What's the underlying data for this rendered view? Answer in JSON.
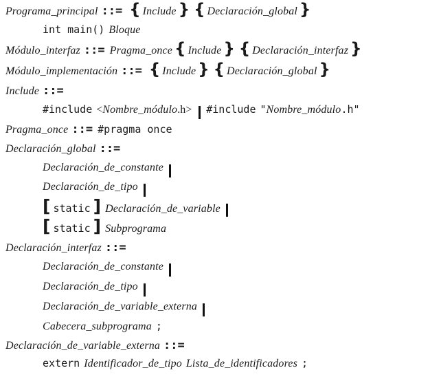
{
  "grammar": {
    "assign_op": "::=",
    "brace_open": "{",
    "brace_close": "}",
    "bracket_open": "[",
    "bracket_close": "]",
    "semicolon": ";",
    "programa_principal": {
      "name": "Programa_principal",
      "include": "Include",
      "decl_global": "Declaración_global",
      "main_sig": "int main()",
      "bloque": "Bloque"
    },
    "modulo_interfaz": {
      "name": "Módulo_interfaz",
      "pragma": "Pragma_once",
      "include": "Include",
      "decl_interfaz": "Declaración_interfaz"
    },
    "modulo_implementacion": {
      "name": "Módulo_implementación",
      "include": "Include",
      "decl_global": "Declaración_global"
    },
    "include_rule": {
      "name": "Include",
      "include_kw": "#include",
      "angle_open": "<",
      "module_name": "Nombre_módulo",
      "angle_close": ".h>",
      "include_kw2": "#include",
      "quote_open": "\"",
      "module_name2": "Nombre_módulo",
      "quote_close": ".h\""
    },
    "pragma_once": {
      "name": "Pragma_once",
      "pragma_kw": "#pragma once"
    },
    "declaracion_global": {
      "name": "Declaración_global",
      "alt1": "Declaración_de_constante",
      "alt2": "Declaración_de_tipo",
      "static_kw": "static",
      "alt3": "Declaración_de_variable",
      "alt4": "Subprograma"
    },
    "declaracion_interfaz": {
      "name": "Declaración_interfaz",
      "alt1": "Declaración_de_constante",
      "alt2": "Declaración_de_tipo",
      "alt3": "Declaración_de_variable_externa",
      "alt4": "Cabecera_subprograma"
    },
    "declaracion_variable_externa": {
      "name": "Declaración_de_variable_externa",
      "extern_kw": "extern",
      "tipo": "Identificador_de_tipo",
      "lista": "Lista_de_identificadores"
    }
  }
}
